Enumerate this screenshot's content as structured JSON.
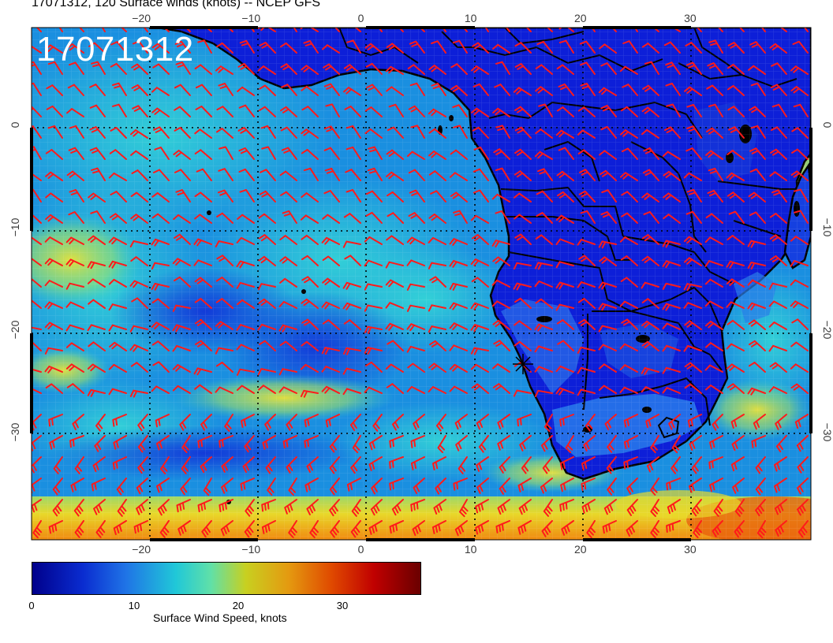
{
  "title": "17071312, 120 Surface winds (knots) -- NCEP GFS",
  "stamp": "17071312",
  "lon_ticks": [
    -20,
    -10,
    0,
    10,
    20,
    30
  ],
  "lon_tick_labels": [
    "−20",
    "−10",
    "0",
    "10",
    "20",
    "30"
  ],
  "lat_ticks": [
    0,
    -10,
    -20,
    -30
  ],
  "lat_tick_labels": [
    "0",
    "−10",
    "−20",
    "−30"
  ],
  "map_extent": {
    "lon_min": -30,
    "lon_max": 41,
    "lat_min": -40.5,
    "lat_max": 9.5
  },
  "colorbar": {
    "label": "Surface Wind Speed, knots",
    "ticks": [
      "0",
      "10",
      "20",
      "30"
    ],
    "range": [
      0,
      36
    ]
  },
  "colors": {
    "ocean_base": "#1a8fe0",
    "land": "#0d1fd8",
    "barb": "#ff1a1a",
    "coast": "#000000"
  },
  "marker": {
    "lon": 14.5,
    "lat": -23,
    "icon": "asterisk-marker"
  }
}
